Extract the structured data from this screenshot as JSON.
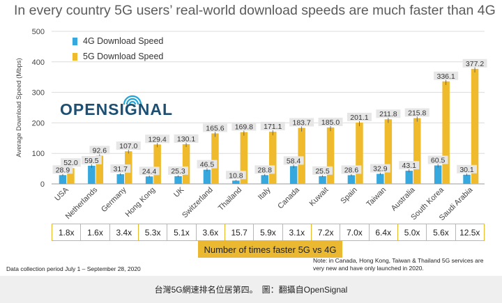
{
  "header": {
    "title": "In every country 5G users’ real-world download speeds are much faster than 4G"
  },
  "logo": {
    "text": "OPENSIGNAL",
    "name": "opensignal-logo"
  },
  "chart_data": {
    "type": "bar",
    "title": "In every country 5G users’ real-world download speeds are much faster than 4G",
    "ylabel": "Average Download Speed (Mbps)",
    "xlabel": "",
    "ylim": [
      0,
      500
    ],
    "yticks": [
      0,
      100,
      200,
      300,
      400,
      500
    ],
    "grid": true,
    "legend_position": "top-left",
    "categories": [
      "USA",
      "Netherlands",
      "Germany",
      "Hong Kong",
      "UK",
      "Switzerland",
      "Thailand",
      "Italy",
      "Canada",
      "Kuwait",
      "Spain",
      "Taiwan",
      "Australia",
      "South Korea",
      "Saudi Arabia"
    ],
    "series": [
      {
        "name": "4G Download Speed",
        "color": "#37a8dd",
        "values": [
          28.9,
          59.5,
          31.7,
          24.4,
          25.3,
          46.5,
          10.8,
          28.8,
          58.4,
          25.5,
          28.6,
          32.9,
          43.1,
          60.5,
          30.1
        ]
      },
      {
        "name": "5G Download Speed",
        "color": "#efbb2c",
        "values": [
          52.0,
          92.6,
          107.0,
          129.4,
          130.1,
          165.6,
          169.8,
          171.1,
          183.7,
          185.0,
          201.1,
          211.8,
          215.8,
          336.1,
          377.2
        ]
      }
    ],
    "value_labels": {
      "4G": [
        "28.9",
        "59.5",
        "31.7",
        "24.4",
        "25.3",
        "46.5",
        "10.8",
        "28.8",
        "58.4",
        "25.5",
        "28.6",
        "32.9",
        "43.1",
        "60.5",
        "30.1"
      ],
      "5G": [
        "52.0",
        "92.6",
        "107.0",
        "129.4",
        "130.1",
        "165.6",
        "169.8",
        "171.1",
        "183.7",
        "185.0",
        "201.1",
        "211.8",
        "215.8",
        "336.1",
        "377.2"
      ]
    },
    "error_bars": true
  },
  "ratios": {
    "values": [
      "1.8x",
      "1.6x",
      "3.4x",
      "5.3x",
      "5.1x",
      "3.6x",
      "15.7",
      "5.9x",
      "3.1x",
      "7.2x",
      "7.0x",
      "6.4x",
      "5.0x",
      "5.6x",
      "12.5x"
    ],
    "caption": "Number of times faster 5G vs 4G"
  },
  "footnotes": {
    "left": "Data collection period July 1 – September 28, 2020",
    "right": "Note: in Canada, Hong Kong, Taiwan & Thailand 5G services are very new and have only launched in 2020."
  },
  "caption": {
    "text": "台灣5G網速排名位居第四。　圖：翻攝自OpenSignal"
  }
}
